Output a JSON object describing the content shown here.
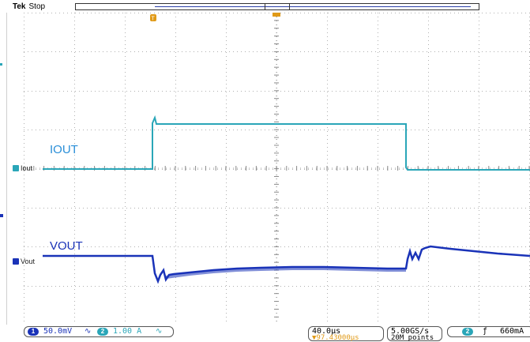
{
  "header": {
    "brand": "Tek",
    "status": "Stop"
  },
  "trigger": {
    "marker_label": "T",
    "position_label": "T"
  },
  "channels": [
    {
      "id": "1",
      "name": "VOUT",
      "ref_label": "Vout",
      "scale": "50.0mV",
      "color": "#1a33b8",
      "coupling_glyph": "∿"
    },
    {
      "id": "2",
      "name": "IOUT",
      "ref_label": "Iout",
      "scale": "1.00 A",
      "color": "#2aa6b8",
      "coupling_glyph": "∿"
    }
  ],
  "timebase": {
    "scale": "40.0µs",
    "delay": "▼97.43000µs"
  },
  "acquisition": {
    "rate": "5.00GS/s",
    "points": "20M points"
  },
  "trigger_info": {
    "channel": "2",
    "slope": "ƒ",
    "level": "660mA"
  }
}
